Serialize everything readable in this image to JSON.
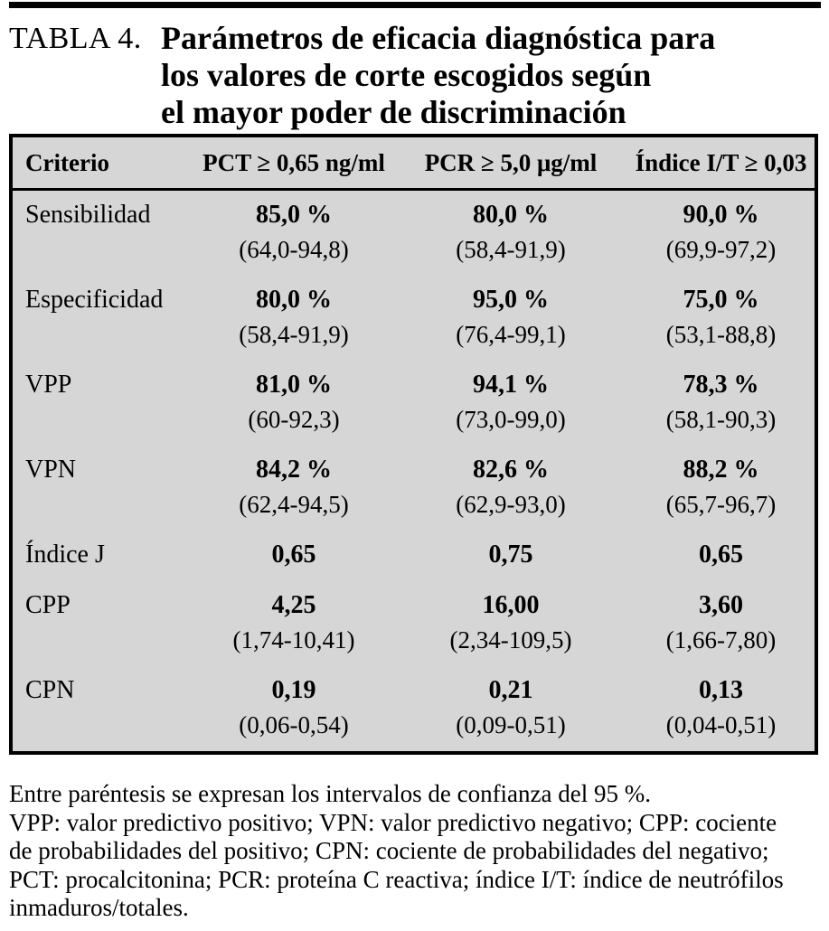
{
  "header": {
    "label": "TABLA 4.",
    "title_lines": [
      "Parámetros de eficacia diagnóstica para",
      "los valores de corte escogidos según",
      "el mayor poder de discriminación"
    ]
  },
  "table": {
    "columns": [
      "Criterio",
      "PCT ≥ 0,65 ng/ml",
      "PCR ≥ 5,0 μg/ml",
      "Índice I/T ≥ 0,03"
    ],
    "rows": [
      {
        "label": "Sensibilidad",
        "cells": [
          {
            "value": "85,0 %",
            "ci": "(64,0-94,8)"
          },
          {
            "value": "80,0 %",
            "ci": "(58,4-91,9)"
          },
          {
            "value": "90,0 %",
            "ci": "(69,9-97,2)"
          }
        ]
      },
      {
        "label": "Especificidad",
        "cells": [
          {
            "value": "80,0 %",
            "ci": "(58,4-91,9)"
          },
          {
            "value": "95,0 %",
            "ci": "(76,4-99,1)"
          },
          {
            "value": "75,0 %",
            "ci": "(53,1-88,8)"
          }
        ]
      },
      {
        "label": "VPP",
        "cells": [
          {
            "value": "81,0 %",
            "ci": "(60-92,3)"
          },
          {
            "value": "94,1 %",
            "ci": "(73,0-99,0)"
          },
          {
            "value": "78,3 %",
            "ci": "(58,1-90,3)"
          }
        ]
      },
      {
        "label": "VPN",
        "cells": [
          {
            "value": "84,2 %",
            "ci": "(62,4-94,5)"
          },
          {
            "value": "82,6 %",
            "ci": "(62,9-93,0)"
          },
          {
            "value": "88,2 %",
            "ci": "(65,7-96,7)"
          }
        ]
      },
      {
        "label": "Índice J",
        "cells": [
          {
            "value": "0,65",
            "ci": ""
          },
          {
            "value": "0,75",
            "ci": ""
          },
          {
            "value": "0,65",
            "ci": ""
          }
        ]
      },
      {
        "label": "CPP",
        "cells": [
          {
            "value": "4,25",
            "ci": "(1,74-10,41)"
          },
          {
            "value": "16,00",
            "ci": "(2,34-109,5)"
          },
          {
            "value": "3,60",
            "ci": "(1,66-7,80)"
          }
        ]
      },
      {
        "label": "CPN",
        "cells": [
          {
            "value": "0,19",
            "ci": "(0,06-0,54)"
          },
          {
            "value": "0,21",
            "ci": "(0,09-0,51)"
          },
          {
            "value": "0,13",
            "ci": "(0,04-0,51)"
          }
        ]
      }
    ]
  },
  "notes": {
    "lines": [
      "Entre paréntesis se expresan los intervalos de confianza del 95 %.",
      "VPP: valor predictivo positivo; VPN: valor predictivo negativo; CPP: cociente",
      "de probabilidades del positivo; CPN: cociente de probabilidades del negativo;",
      "PCT: procalcitonina; PCR: proteína C reactiva; índice I/T: índice de neutrófilos",
      "inmaduros/totales."
    ]
  },
  "colors": {
    "table_background": "#d6d6d6",
    "border": "#000000",
    "text": "#000000"
  }
}
